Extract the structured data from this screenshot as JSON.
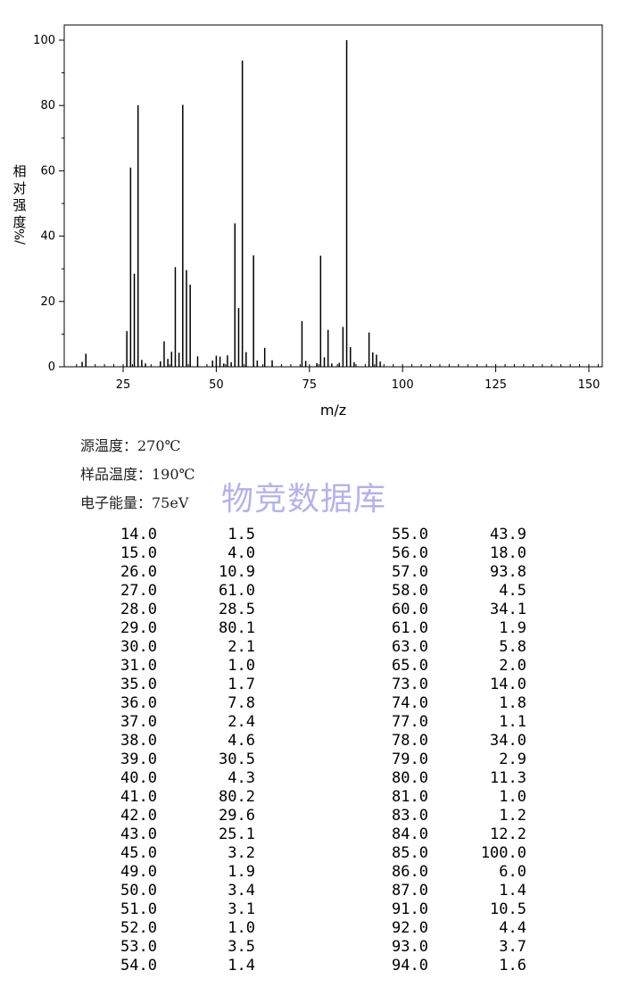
{
  "chart_data": {
    "type": "bar",
    "xlabel": "m/z",
    "ylabel": "相对强度/%",
    "xlim": [
      10,
      153
    ],
    "ylim": [
      0,
      104
    ],
    "xticks": [
      25,
      50,
      75,
      100,
      125,
      150
    ],
    "yticks": [
      0,
      20,
      40,
      60,
      80,
      100
    ],
    "x": [
      14,
      15,
      26,
      27,
      28,
      29,
      30,
      31,
      35,
      36,
      37,
      38,
      39,
      40,
      41,
      42,
      43,
      45,
      49,
      50,
      51,
      52,
      53,
      54,
      55,
      56,
      57,
      58,
      60,
      61,
      63,
      65,
      73,
      74,
      77,
      78,
      79,
      80,
      81,
      83,
      84,
      85,
      86,
      87,
      91,
      92,
      93,
      94
    ],
    "values": [
      1.5,
      4.0,
      10.9,
      61.0,
      28.5,
      80.1,
      2.1,
      1.0,
      1.7,
      7.8,
      2.4,
      4.6,
      30.5,
      4.3,
      80.2,
      29.6,
      25.1,
      3.2,
      1.9,
      3.4,
      3.1,
      1.0,
      3.5,
      1.4,
      43.9,
      18.0,
      93.8,
      4.5,
      34.1,
      1.9,
      5.8,
      2.0,
      14.0,
      1.8,
      1.1,
      34.0,
      2.9,
      11.3,
      1.0,
      1.2,
      12.2,
      100.0,
      6.0,
      1.4,
      10.5,
      4.4,
      3.7,
      1.6
    ]
  },
  "conditions": {
    "source_temp": "源温度：270℃",
    "sample_temp": "样品温度：190℃",
    "electron_energy": "电子能量：75eV"
  },
  "watermark": "物竞数据库",
  "peak_table": {
    "left": [
      [
        "14.0",
        "1.5"
      ],
      [
        "15.0",
        "4.0"
      ],
      [
        "26.0",
        "10.9"
      ],
      [
        "27.0",
        "61.0"
      ],
      [
        "28.0",
        "28.5"
      ],
      [
        "29.0",
        "80.1"
      ],
      [
        "30.0",
        "2.1"
      ],
      [
        "31.0",
        "1.0"
      ],
      [
        "35.0",
        "1.7"
      ],
      [
        "36.0",
        "7.8"
      ],
      [
        "37.0",
        "2.4"
      ],
      [
        "38.0",
        "4.6"
      ],
      [
        "39.0",
        "30.5"
      ],
      [
        "40.0",
        "4.3"
      ],
      [
        "41.0",
        "80.2"
      ],
      [
        "42.0",
        "29.6"
      ],
      [
        "43.0",
        "25.1"
      ],
      [
        "45.0",
        "3.2"
      ],
      [
        "49.0",
        "1.9"
      ],
      [
        "50.0",
        "3.4"
      ],
      [
        "51.0",
        "3.1"
      ],
      [
        "52.0",
        "1.0"
      ],
      [
        "53.0",
        "3.5"
      ],
      [
        "54.0",
        "1.4"
      ]
    ],
    "right": [
      [
        "55.0",
        "43.9"
      ],
      [
        "56.0",
        "18.0"
      ],
      [
        "57.0",
        "93.8"
      ],
      [
        "58.0",
        "4.5"
      ],
      [
        "60.0",
        "34.1"
      ],
      [
        "61.0",
        "1.9"
      ],
      [
        "63.0",
        "5.8"
      ],
      [
        "65.0",
        "2.0"
      ],
      [
        "73.0",
        "14.0"
      ],
      [
        "74.0",
        "1.8"
      ],
      [
        "77.0",
        "1.1"
      ],
      [
        "78.0",
        "34.0"
      ],
      [
        "79.0",
        "2.9"
      ],
      [
        "80.0",
        "11.3"
      ],
      [
        "81.0",
        "1.0"
      ],
      [
        "83.0",
        "1.2"
      ],
      [
        "84.0",
        "12.2"
      ],
      [
        "85.0",
        "100.0"
      ],
      [
        "86.0",
        "6.0"
      ],
      [
        "87.0",
        "1.4"
      ],
      [
        "91.0",
        "10.5"
      ],
      [
        "92.0",
        "4.4"
      ],
      [
        "93.0",
        "3.7"
      ],
      [
        "94.0",
        "1.6"
      ]
    ]
  }
}
